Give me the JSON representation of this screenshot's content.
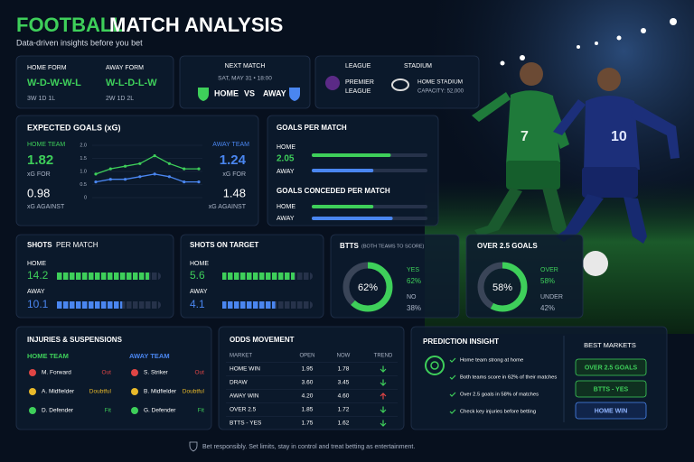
{
  "header": {
    "title_a": "FOOTBALL",
    "title_b": "MATCH ANALYSIS",
    "subtitle": "Data-driven insights before you bet"
  },
  "form": {
    "home_label": "HOME FORM",
    "home_form": "W-D-W-W-L",
    "home_record": "3W 1D 1L",
    "away_label": "AWAY FORM",
    "away_form": "W-L-D-L-W",
    "away_record": "2W 1D 2L"
  },
  "next_match": {
    "label": "NEXT MATCH",
    "date": "SAT, MAY 31 • 18:00",
    "home": "HOME",
    "vs": "VS",
    "away": "AWAY"
  },
  "venue": {
    "league_label": "LEAGUE",
    "league_line1": "PREMIER",
    "league_line2": "LEAGUE",
    "stadium_label": "STADIUM",
    "stadium": "HOME STADIUM",
    "capacity": "CAPACITY: 52,000"
  },
  "hero": {
    "home_number": "7",
    "away_number": "10"
  },
  "xg": {
    "title": "EXPECTED GOALS (xG)",
    "home_label": "HOME TEAM",
    "home_for": "1.82",
    "home_for_label": "xG FOR",
    "home_against": "0.98",
    "home_against_label": "xG AGAINST",
    "away_label": "AWAY TEAM",
    "away_for": "1.24",
    "away_for_label": "xG FOR",
    "away_against": "1.48",
    "away_against_label": "xG AGAINST",
    "chart": {
      "type": "line",
      "categories": [
        null,
        null,
        null,
        null,
        null,
        null,
        null,
        null
      ],
      "ylim": [
        0,
        2
      ],
      "yticks": [
        0,
        0.5,
        {
          "value": 1,
          "label": "1.0"
        },
        1.5,
        {
          "value": 2,
          "label": "2.0"
        }
      ],
      "series": [
        {
          "color": "#3ecf5a",
          "values": [
            0.9,
            1.1,
            1.2,
            1.3,
            1.6,
            1.3,
            1.1,
            1.1
          ]
        },
        {
          "color": "#4a86f0",
          "values": [
            0.6,
            0.7,
            0.7,
            0.8,
            0.9,
            0.8,
            0.6,
            0.6
          ]
        }
      ]
    }
  },
  "goals": {
    "title": "GOALS PER MATCH",
    "xlim": [
      0,
      3
    ],
    "home_label": "HOME",
    "home_value": 2.05,
    "away_label": "AWAY",
    "away_value": 1.6,
    "conceded_title": "GOALS CONCEDED PER MATCH",
    "conceded_home_label": "HOME",
    "conceded_home_value": 1.6,
    "conceded_away_label": "AWAY",
    "conceded_away_value": 2.1
  },
  "shots": {
    "title_a": "SHOTS",
    "title_b": "PER MATCH",
    "xlim": [
      0,
      16
    ],
    "home_label": "HOME",
    "home_value": 14.2,
    "away_label": "AWAY",
    "away_value": 10.1
  },
  "shots_on_target": {
    "title": "SHOTS ON TARGET",
    "xlim": [
      0,
      7
    ],
    "home_label": "HOME",
    "home_value": 5.6,
    "away_label": "AWAY",
    "away_value": 4.1
  },
  "btts": {
    "title": "BTTS",
    "subtitle": "(BOTH TEAMS TO SCORE)",
    "categories": [
      "YES",
      "NO"
    ],
    "values": [
      62,
      38
    ],
    "value_labels": [
      "62%",
      "38%"
    ]
  },
  "over25": {
    "title": "OVER 2.5 GOALS",
    "categories": [
      "OVER",
      "UNDER"
    ],
    "values": [
      58,
      42
    ],
    "value_labels": [
      "58%",
      "42%"
    ]
  },
  "injuries": {
    "title": "INJURIES & SUSPENSIONS",
    "home": {
      "label": "HOME TEAM",
      "rows": [
        [
          "M. Forward",
          "Out"
        ],
        [
          "A. Midfielder",
          "Doubtful"
        ],
        [
          "D. Defender",
          "Fit"
        ]
      ]
    },
    "away": {
      "label": "AWAY TEAM",
      "rows": [
        [
          "S. Striker",
          "Out"
        ],
        [
          "B. Midfielder",
          "Doubtful"
        ],
        [
          "G. Defender",
          "Fit"
        ]
      ]
    }
  },
  "odds": {
    "title": "ODDS MOVEMENT",
    "headers": [
      "MARKET",
      "OPEN",
      "NOW",
      "TREND"
    ],
    "rows": [
      [
        "HOME WIN",
        "1.95",
        "1.78"
      ],
      [
        "DRAW",
        "3.60",
        "3.45"
      ],
      [
        "AWAY WIN",
        "4.20",
        "4.60"
      ],
      [
        "OVER 2.5",
        "1.85",
        "1.72"
      ],
      [
        "BTTS - YES",
        "1.75",
        "1.62"
      ]
    ]
  },
  "prediction": {
    "title": "PREDICTION INSIGHT",
    "points": [
      "Home team strong at home",
      "Both teams score in 62% of their matches",
      "Over 2.5 goals in 58% of matches",
      "Check key injuries before betting"
    ],
    "best_title": "BEST MARKETS",
    "best": [
      "OVER 2.5 GOALS",
      "BTTS - YES",
      "HOME WIN"
    ]
  },
  "footer": "Bet responsibly. Set limits, stay in control and treat betting as entertainment."
}
